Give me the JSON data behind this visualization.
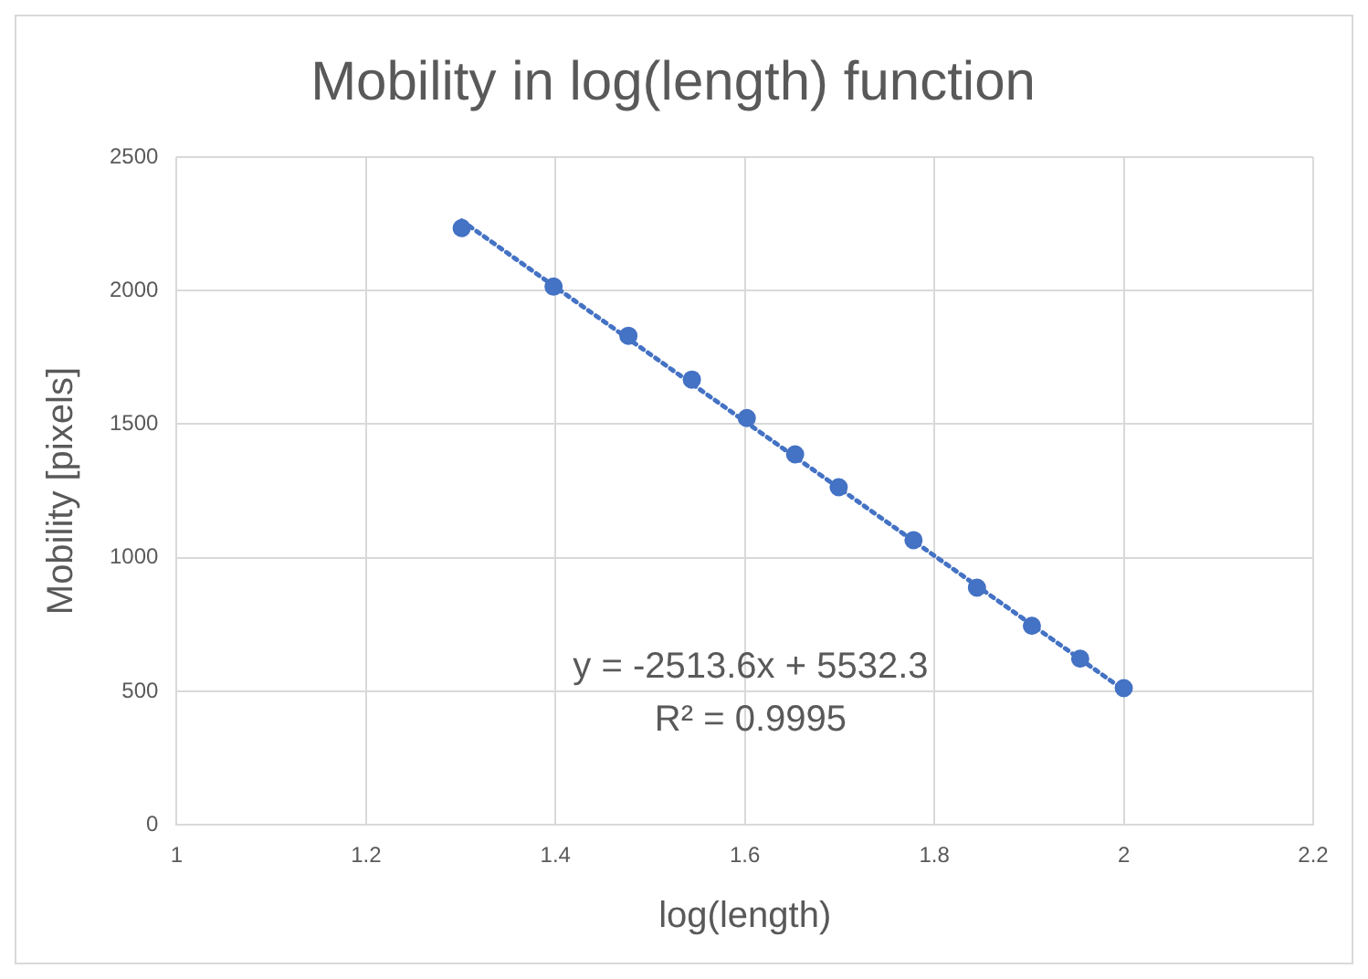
{
  "chart_data": {
    "type": "scatter",
    "title": "Mobility in log(length) function",
    "xlabel": "log(length)",
    "ylabel": "Mobility [pixels]",
    "xlim": [
      1,
      2.2
    ],
    "xticks": [
      1,
      1.2,
      1.4,
      1.6,
      1.8,
      2,
      2.2
    ],
    "ylim": [
      0,
      2500
    ],
    "yticks": [
      0,
      500,
      1000,
      1500,
      2000,
      2500
    ],
    "grid": true,
    "legend": false,
    "annotations": [
      "y = -2513.6x + 5532.3",
      "R² = 0.9995"
    ],
    "series": [
      {
        "color": "#4472c4",
        "marker": "circle",
        "x": [
          1.301,
          1.398,
          1.477,
          1.544,
          1.602,
          1.653,
          1.699,
          1.778,
          1.845,
          1.903,
          1.954,
          2.0
        ],
        "values": [
          2234,
          2015,
          1831,
          1667,
          1523,
          1387,
          1264,
          1066,
          888,
          745,
          622,
          512
        ]
      },
      {
        "type": "line",
        "color": "#4472c4",
        "marker": "none",
        "line_style": "dotted",
        "x": [
          1.301,
          2.0
        ],
        "values": [
          2262,
          505
        ]
      }
    ]
  }
}
